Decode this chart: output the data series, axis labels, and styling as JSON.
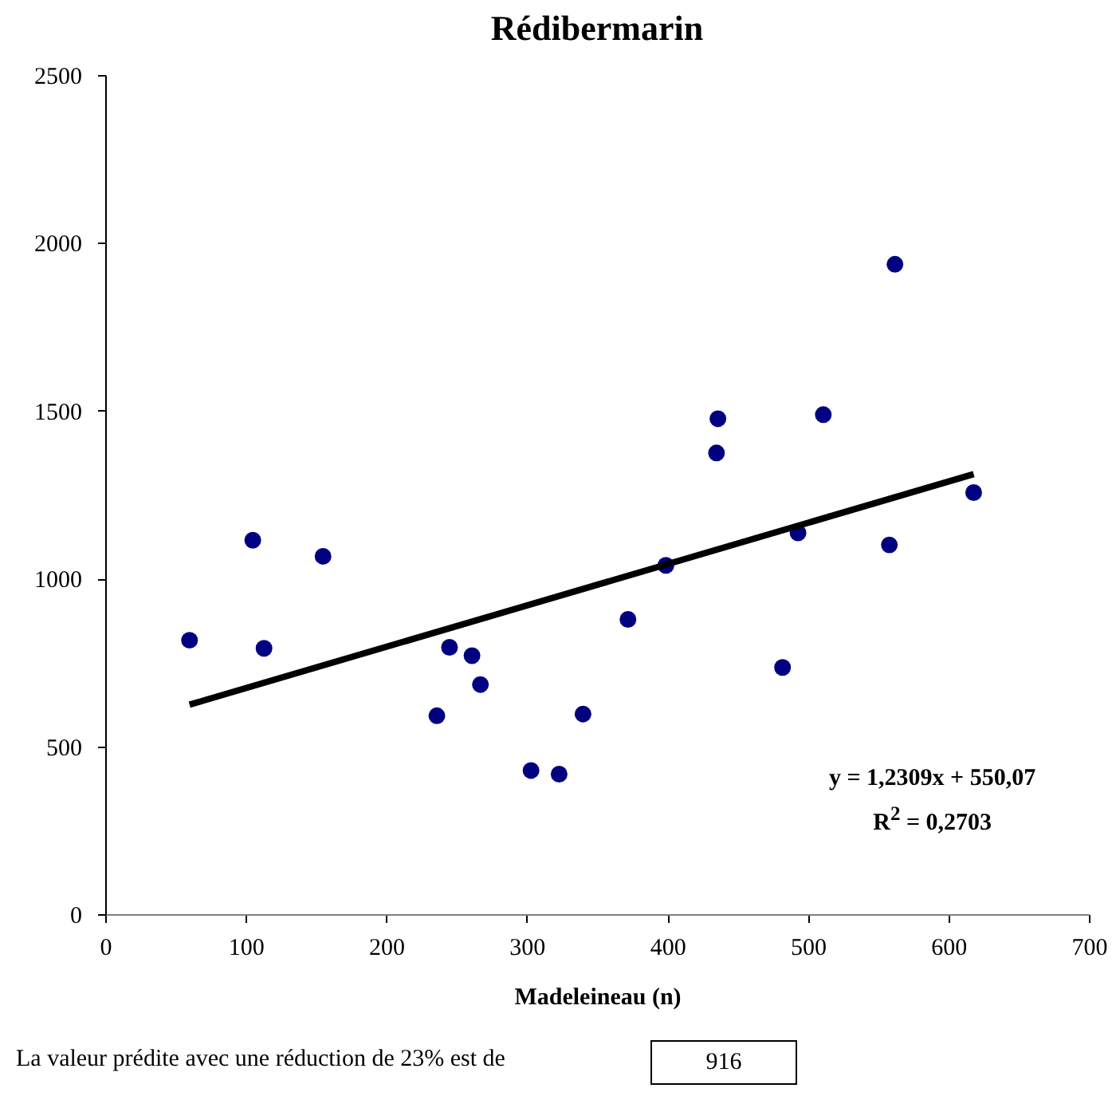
{
  "chart_data": {
    "type": "scatter",
    "title": "Rédibermarin",
    "xlabel": "Madeleineau (n)",
    "xlim": [
      0,
      700
    ],
    "xticks": [
      0,
      100,
      200,
      300,
      400,
      500,
      600,
      700
    ],
    "ylim": [
      0,
      2500
    ],
    "yticks": [
      0,
      500,
      1000,
      1500,
      2000,
      2500
    ],
    "grid": false,
    "series": [
      {
        "marker": "circle",
        "color": "#000080",
        "x": [
          60,
          105,
          113,
          155,
          245,
          261,
          267,
          236,
          303,
          323,
          340,
          372,
          399,
          436,
          435,
          511,
          562,
          618,
          493,
          558,
          482
        ],
        "values": [
          816,
          1114,
          792,
          1066,
          795,
          770,
          684,
          591,
          428,
          417,
          596,
          878,
          1039,
          1476,
          1374,
          1488,
          1936,
          1256,
          1136,
          1100,
          735
        ]
      },
      {
        "type": "line",
        "marker": "none",
        "color": "#000000",
        "x": [
          60,
          618
        ],
        "values": [
          624,
          1311
        ]
      }
    ],
    "annotations": [
      "y = 1,2309x + 550,07",
      "R$^{2}$ = 0,2703",
      "La valeur prédite avec une réduction de 23% est de",
      "916"
    ]
  }
}
